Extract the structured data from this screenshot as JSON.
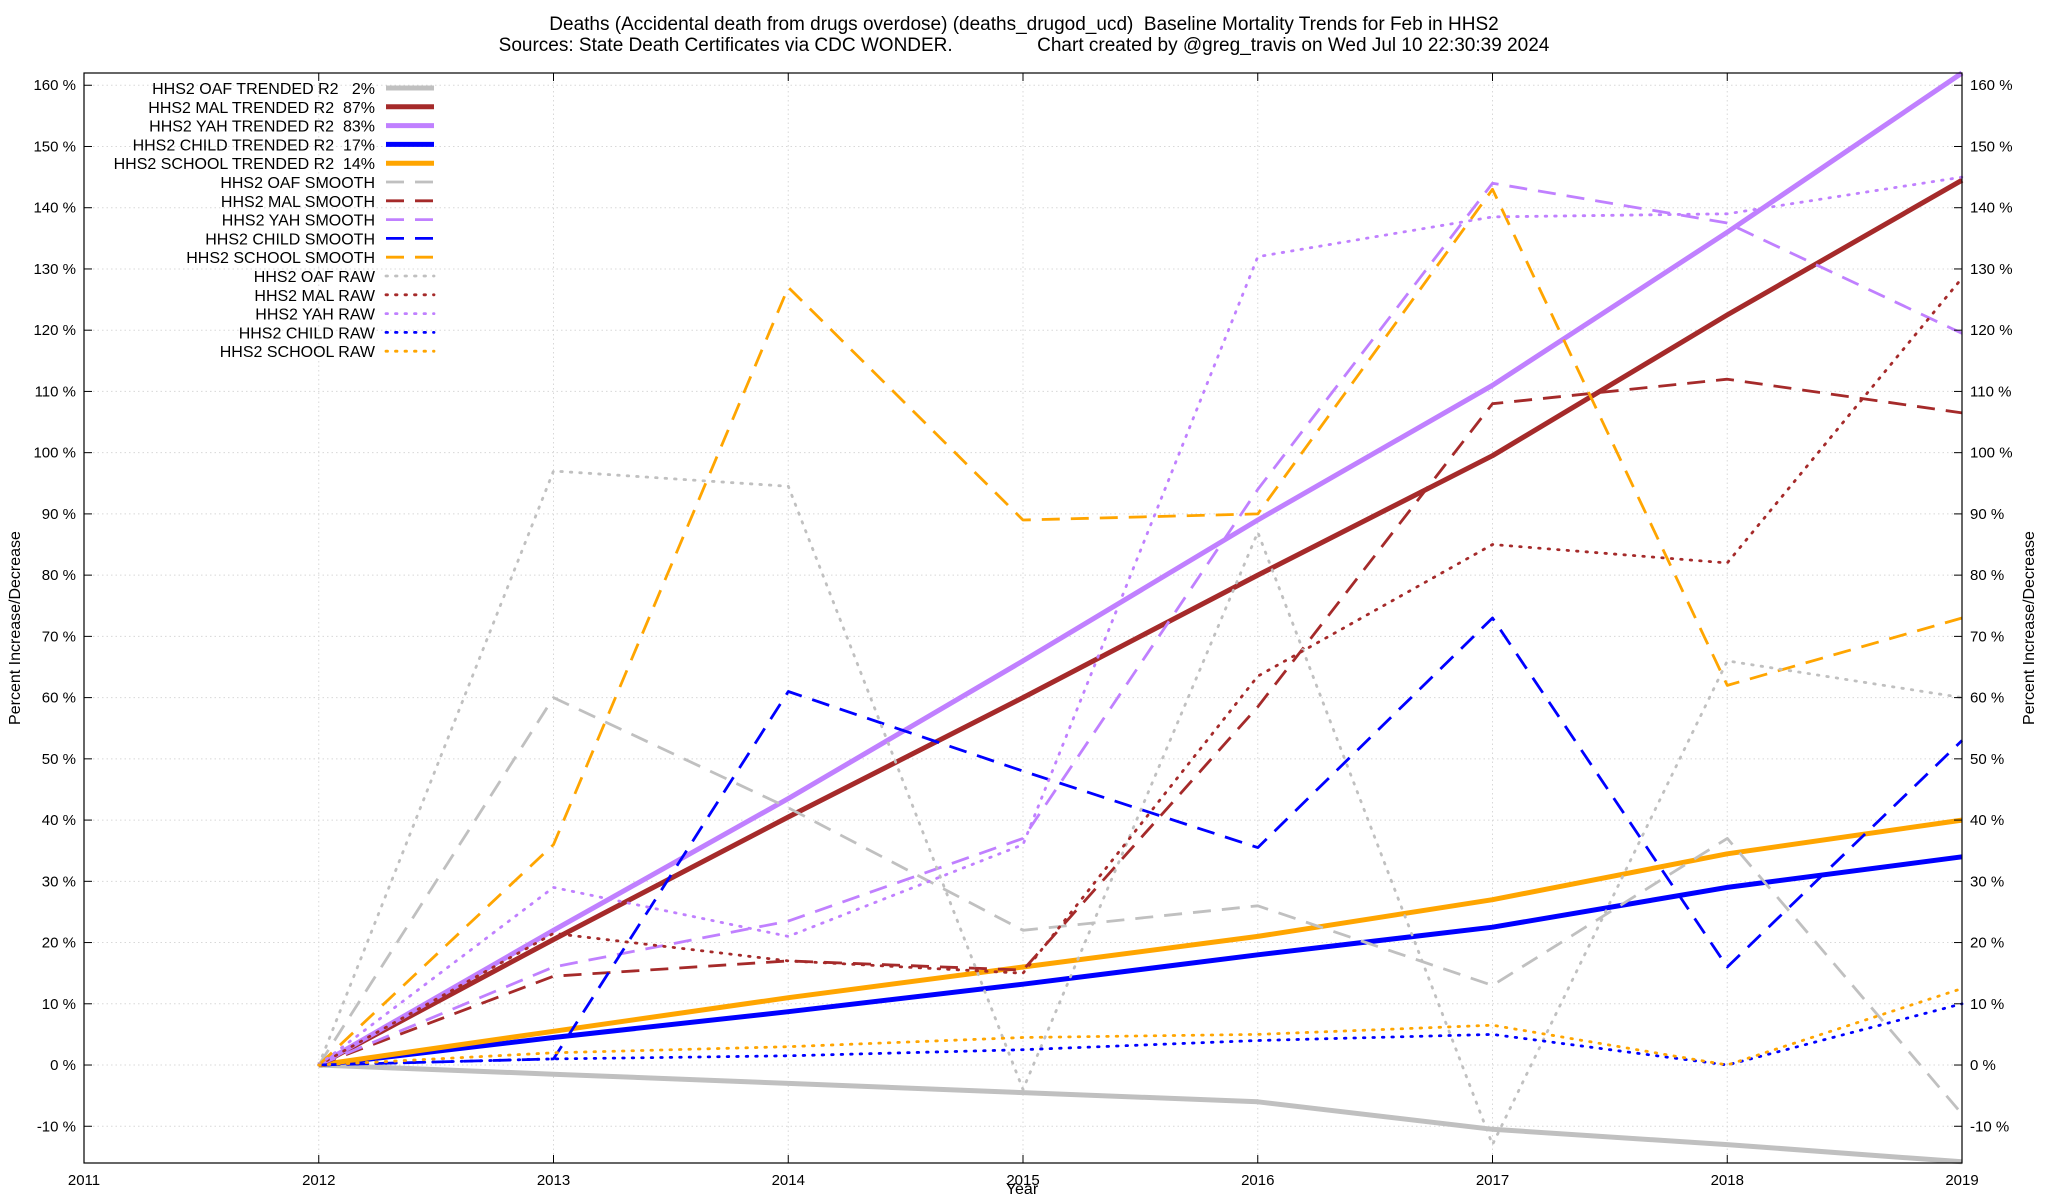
{
  "chart_data": {
    "type": "line",
    "title_lines": [
      "Deaths (Accidental death from drugs overdose) (deaths_drugod_ucd)  Baseline Mortality Trends for Feb in HHS2",
      "Sources: State Death Certificates via CDC WONDER.                Chart created by @greg_travis on Wed Jul 10 22:30:39 2024"
    ],
    "xlabel": "Year",
    "ylabel": "Percent Increase/Decrease",
    "y2label": "Percent Increase/Decrease",
    "xlim": [
      2011,
      2019
    ],
    "ylim": [
      -16,
      162
    ],
    "x_ticks": [
      2011,
      2012,
      2013,
      2014,
      2015,
      2016,
      2017,
      2018,
      2019
    ],
    "y_ticks": [
      -10,
      0,
      10,
      20,
      30,
      40,
      50,
      60,
      70,
      80,
      90,
      100,
      110,
      120,
      130,
      140,
      150,
      160
    ],
    "y_tick_suffix": " %",
    "grid": true,
    "legend_position": "top-left",
    "x": [
      2012,
      2013,
      2014,
      2015,
      2016,
      2017,
      2018,
      2019
    ],
    "series": [
      {
        "name": "HHS2 OAF TRENDED R2   2%",
        "style": "solid",
        "color": "#c0c0c0",
        "values": [
          0,
          -1.5,
          -3,
          -4.5,
          -6,
          -10.5,
          -13,
          -15.8
        ]
      },
      {
        "name": "HHS2 MAL TRENDED R2  87%",
        "style": "solid",
        "color": "#a52a2a",
        "values": [
          0,
          20.5,
          40.5,
          60,
          80,
          99.5,
          122.5,
          144.5
        ]
      },
      {
        "name": "HHS2 YAH TRENDED R2  83%",
        "style": "solid",
        "color": "#c080ff",
        "values": [
          0,
          22,
          43.5,
          66,
          89,
          111,
          136,
          162
        ]
      },
      {
        "name": "HHS2 CHILD TRENDED R2  17%",
        "style": "solid",
        "color": "#0000ff",
        "values": [
          0,
          4.5,
          8.7,
          13.2,
          18,
          22.5,
          29,
          34
        ]
      },
      {
        "name": "HHS2 SCHOOL TRENDED R2  14%",
        "style": "solid",
        "color": "#ffa500",
        "values": [
          0,
          5.5,
          11,
          16,
          21,
          27,
          34.5,
          40
        ]
      },
      {
        "name": "HHS2 OAF SMOOTH",
        "style": "dashed",
        "color": "#c0c0c0",
        "values": [
          0,
          60,
          42,
          22,
          26,
          13,
          37,
          -8
        ]
      },
      {
        "name": "HHS2 MAL SMOOTH",
        "style": "dashed",
        "color": "#a52a2a",
        "values": [
          0,
          14.5,
          17,
          15.5,
          58.5,
          108,
          112,
          106.5
        ]
      },
      {
        "name": "HHS2 YAH SMOOTH",
        "style": "dashed",
        "color": "#c080ff",
        "values": [
          0,
          16,
          23.5,
          37,
          94,
          144,
          137.5,
          119.5
        ]
      },
      {
        "name": "HHS2 CHILD SMOOTH",
        "style": "dashed",
        "color": "#0000ff",
        "values": [
          0,
          1,
          61,
          48,
          35.5,
          73,
          16,
          53
        ]
      },
      {
        "name": "HHS2 SCHOOL SMOOTH",
        "style": "dashed",
        "color": "#ffa500",
        "values": [
          0,
          36,
          127,
          89,
          90,
          143,
          62,
          73
        ]
      },
      {
        "name": "HHS2 OAF RAW",
        "style": "dotted",
        "color": "#c0c0c0",
        "values": [
          0,
          97,
          94.5,
          -4,
          87,
          -13,
          66,
          60
        ]
      },
      {
        "name": "HHS2 MAL RAW",
        "style": "dotted",
        "color": "#a52a2a",
        "values": [
          0,
          21.5,
          17,
          15,
          63.5,
          85,
          82,
          128.5
        ]
      },
      {
        "name": "HHS2 YAH RAW",
        "style": "dotted",
        "color": "#c080ff",
        "values": [
          0,
          29,
          21,
          36,
          132,
          138.5,
          139,
          145
        ]
      },
      {
        "name": "HHS2 CHILD RAW",
        "style": "dotted",
        "color": "#0000ff",
        "values": [
          0,
          1,
          1.5,
          2.5,
          4,
          5,
          0,
          10
        ]
      },
      {
        "name": "HHS2 SCHOOL RAW",
        "style": "dotted",
        "color": "#ffa500",
        "values": [
          0,
          2,
          3,
          4.5,
          5,
          6.5,
          0,
          12.5
        ]
      }
    ]
  }
}
